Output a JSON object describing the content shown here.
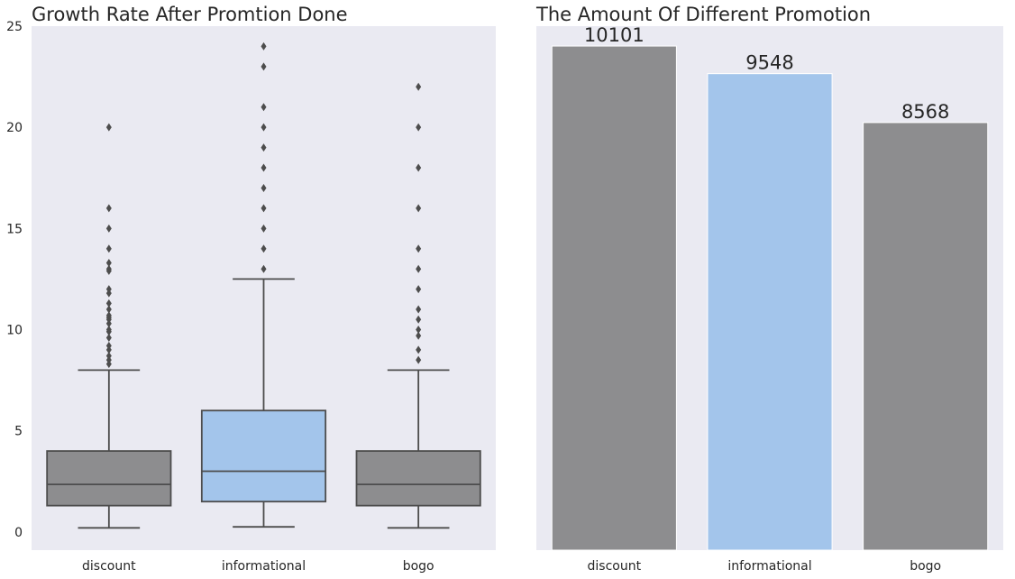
{
  "colors": {
    "plot_bg": "#eaeaf2",
    "gray": "#8d8d8f",
    "blue": "#a3c5eb",
    "box_line": "#4d4d4d"
  },
  "chart_data": [
    {
      "type": "box",
      "title": "Growth Rate After Promtion Done",
      "xlabel": "",
      "ylabel": "",
      "ylim": [
        -0.9,
        25
      ],
      "yticks": [
        0,
        5,
        10,
        15,
        20,
        25
      ],
      "grid": false,
      "categories": [
        "discount",
        "informational",
        "bogo"
      ],
      "colors": [
        "#8d8d8f",
        "#a3c5eb",
        "#8d8d8f"
      ],
      "boxes": [
        {
          "category": "discount",
          "whisker_low": 0.2,
          "q1": 1.3,
          "median": 2.35,
          "q3": 4.0,
          "whisker_high": 8.0,
          "outliers": [
            8.3,
            8.5,
            8.7,
            9.0,
            9.2,
            9.6,
            9.9,
            10.0,
            10.3,
            10.5,
            10.6,
            10.7,
            11.0,
            11.3,
            11.8,
            12.0,
            12.9,
            13.0,
            13.3,
            14.0,
            15.0,
            16.0,
            20.0
          ]
        },
        {
          "category": "informational",
          "whisker_low": 0.25,
          "q1": 1.5,
          "median": 3.0,
          "q3": 6.0,
          "whisker_high": 12.5,
          "outliers": [
            13.0,
            14.0,
            15.0,
            16.0,
            17.0,
            18.0,
            19.0,
            20.0,
            21.0,
            23.0,
            24.0
          ]
        },
        {
          "category": "bogo",
          "whisker_low": 0.2,
          "q1": 1.3,
          "median": 2.35,
          "q3": 4.0,
          "whisker_high": 8.0,
          "outliers": [
            8.5,
            9.0,
            9.7,
            10.0,
            10.5,
            11.0,
            12.0,
            13.0,
            14.0,
            16.0,
            18.0,
            20.0,
            22.0
          ]
        }
      ]
    },
    {
      "type": "bar",
      "title": "The Amount Of Different Promotion",
      "xlabel": "",
      "ylabel": "",
      "ylim": [
        0,
        10500
      ],
      "grid": false,
      "categories": [
        "discount",
        "informational",
        "bogo"
      ],
      "values": [
        10101,
        9548,
        8568
      ],
      "data_labels": [
        "10101",
        "9548",
        "8568"
      ],
      "colors": [
        "#8d8d8f",
        "#a3c5eb",
        "#8d8d8f"
      ]
    }
  ]
}
